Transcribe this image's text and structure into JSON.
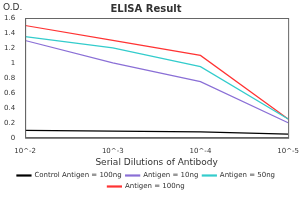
{
  "chart_data": {
    "type": "line",
    "title": "ELISA Result",
    "y_label": "O.D.",
    "x_label": "Serial Dilutions of Antibody",
    "log": "x",
    "x": [
      0.01,
      0.001,
      0.0001,
      1e-05
    ],
    "xlim": [
      0.01,
      1e-05
    ],
    "xticks": [
      {
        "value": 0.01,
        "label": "10^-2"
      },
      {
        "value": 0.001,
        "label": "10^-3"
      },
      {
        "value": 0.0001,
        "label": "10^-4"
      },
      {
        "value": 1e-05,
        "label": "10^-5"
      }
    ],
    "ylim": [
      0,
      1.6
    ],
    "yticks": [
      0,
      0.2,
      0.4,
      0.6,
      0.8,
      1,
      1.2,
      1.4,
      1.6
    ],
    "grid": false,
    "legend": "bottom",
    "series": [
      {
        "name": "Control Antigen = 100ng",
        "color": "#000000",
        "values": [
          0.1,
          0.09,
          0.08,
          0.05
        ]
      },
      {
        "name": "Antigen = 10ng",
        "color": "#8a6fd6",
        "values": [
          1.3,
          1.0,
          0.75,
          0.2
        ]
      },
      {
        "name": "Antigen = 50ng",
        "color": "#33cccc",
        "values": [
          1.35,
          1.2,
          0.95,
          0.25
        ]
      },
      {
        "name": "Antigen = 100ng",
        "color": "#ff3333",
        "values": [
          1.5,
          1.3,
          1.1,
          0.25
        ]
      }
    ]
  }
}
